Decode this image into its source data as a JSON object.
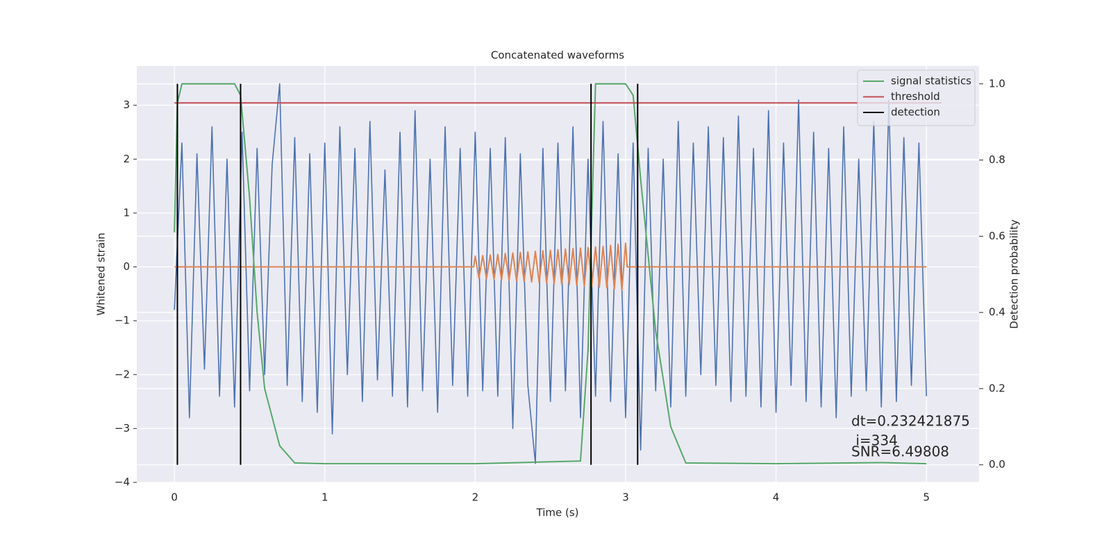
{
  "chart_data": {
    "type": "line",
    "title": "Concatenated waveforms",
    "xlabel": "Time (s)",
    "ylabel": "Whitened strain",
    "y2label": "Detection probability",
    "xlim": [
      -0.25,
      5.35
    ],
    "ylim": [
      -4.0,
      3.73
    ],
    "y2lim": [
      -0.046,
      1.047
    ],
    "xticks": [
      0,
      1,
      2,
      3,
      4,
      5
    ],
    "yticks": [
      {
        "value": -4,
        "label": "−4"
      },
      {
        "value": -3,
        "label": "−3"
      },
      {
        "value": -2,
        "label": "−2"
      },
      {
        "value": -1,
        "label": "−1"
      },
      0,
      1,
      2,
      3
    ],
    "y2ticks": [
      {
        "value": 0,
        "label": "0.0"
      },
      {
        "value": 0.2,
        "label": "0.2"
      },
      {
        "value": 0.4,
        "label": "0.4"
      },
      {
        "value": 0.6,
        "label": "0.6"
      },
      {
        "value": 0.8,
        "label": "0.8"
      },
      {
        "value": 1,
        "label": "1.0"
      }
    ],
    "grid": true,
    "legend": "upper right",
    "series": [
      {
        "color": "#4c72b0",
        "x": [
          0,
          0.05,
          0.1,
          0.15,
          0.2,
          0.25,
          0.3,
          0.35,
          0.4,
          0.45,
          0.5,
          0.55,
          0.6,
          0.65,
          0.7,
          0.75,
          0.8,
          0.85,
          0.9,
          0.95,
          1,
          1.05,
          1.1,
          1.15,
          1.2,
          1.25,
          1.3,
          1.35,
          1.4,
          1.45,
          1.5,
          1.55,
          1.6,
          1.65,
          1.7,
          1.75,
          1.8,
          1.85,
          1.9,
          1.95,
          2,
          2.05,
          2.1,
          2.15,
          2.2,
          2.25,
          2.3,
          2.35,
          2.4,
          2.45,
          2.5,
          2.55,
          2.6,
          2.65,
          2.7,
          2.75,
          2.8,
          2.85,
          2.9,
          2.95,
          3,
          3.05,
          3.1,
          3.15,
          3.2,
          3.25,
          3.3,
          3.35,
          3.4,
          3.45,
          3.5,
          3.55,
          3.6,
          3.65,
          3.7,
          3.75,
          3.8,
          3.85,
          3.9,
          3.95,
          4,
          4.05,
          4.1,
          4.15,
          4.2,
          4.25,
          4.3,
          4.35,
          4.4,
          4.45,
          4.5,
          4.55,
          4.6,
          4.65,
          4.7,
          4.75,
          4.8,
          4.85,
          4.9,
          4.95,
          5
        ],
        "values": [
          -0.8,
          2.3,
          -2.8,
          2.1,
          -1.9,
          2.6,
          -2.4,
          2.0,
          -2.6,
          2.5,
          -2.3,
          2.2,
          -2.0,
          1.9,
          3.4,
          -2.2,
          2.4,
          -2.5,
          2.1,
          -2.7,
          2.3,
          -3.1,
          2.6,
          -2.0,
          2.2,
          -2.5,
          2.7,
          -2.1,
          1.8,
          -2.4,
          2.5,
          -2.6,
          2.9,
          -2.3,
          2.0,
          -2.7,
          2.6,
          -2.2,
          2.2,
          -2.4,
          2.5,
          -2.3,
          2.2,
          -2.4,
          2.4,
          -3.0,
          2.1,
          -2.2,
          -3.65,
          2.2,
          -2.5,
          2.3,
          -2.3,
          2.6,
          -2.8,
          2.0,
          -2.4,
          2.7,
          -2.5,
          2.1,
          -2.8,
          2.3,
          -3.4,
          2.2,
          -2.3,
          2.0,
          -2.6,
          2.7,
          -2.4,
          2.3,
          -2.0,
          2.6,
          -2.2,
          2.4,
          -2.5,
          2.8,
          -2.4,
          2.2,
          -2.6,
          2.9,
          -2.7,
          2.3,
          -2.2,
          3.1,
          -2.5,
          2.5,
          -2.6,
          2.2,
          -2.8,
          2.6,
          -2.4,
          2.0,
          -2.3,
          2.7,
          -2.6,
          3.1,
          -2.5,
          2.4,
          -2.2,
          2.3,
          -2.4
        ]
      },
      {
        "color": "#dd8452",
        "x": [
          0,
          1.99,
          2,
          2.025,
          2.05,
          2.075,
          2.1,
          2.125,
          2.15,
          2.175,
          2.2,
          2.225,
          2.25,
          2.275,
          2.3,
          2.325,
          2.35,
          2.375,
          2.4,
          2.425,
          2.45,
          2.475,
          2.5,
          2.525,
          2.55,
          2.575,
          2.6,
          2.625,
          2.65,
          2.675,
          2.7,
          2.725,
          2.75,
          2.775,
          2.8,
          2.825,
          2.85,
          2.875,
          2.9,
          2.925,
          2.95,
          2.975,
          3,
          3.01,
          5
        ],
        "values": [
          0,
          0,
          0.2,
          -0.21,
          0.21,
          -0.22,
          0.22,
          -0.23,
          0.23,
          -0.24,
          0.25,
          -0.25,
          0.26,
          -0.26,
          0.27,
          -0.27,
          0.28,
          -0.28,
          0.29,
          -0.29,
          0.3,
          -0.3,
          0.31,
          -0.31,
          0.32,
          -0.32,
          0.33,
          -0.33,
          0.34,
          -0.34,
          0.35,
          -0.36,
          0.36,
          -0.37,
          0.37,
          -0.38,
          0.38,
          -0.39,
          0.4,
          -0.41,
          0.42,
          -0.43,
          0.44,
          0,
          0
        ]
      },
      {
        "name": "signal statistics",
        "color": "#55a868",
        "axis": "y2",
        "x": [
          0,
          0.02,
          0.05,
          0.1,
          0.4,
          0.44,
          0.5,
          0.55,
          0.6,
          0.7,
          0.8,
          1,
          2,
          2.7,
          2.75,
          2.8,
          3,
          3.05,
          3.1,
          3.2,
          3.3,
          3.4,
          4,
          4.7,
          5
        ],
        "values": [
          0.61,
          0.95,
          1.0,
          1.0,
          1.0,
          0.97,
          0.7,
          0.4,
          0.2,
          0.05,
          0.005,
          0.003,
          0.003,
          0.01,
          0.3,
          1.0,
          1.0,
          0.97,
          0.75,
          0.35,
          0.1,
          0.005,
          0.003,
          0.006,
          0.003
        ]
      },
      {
        "name": "threshold",
        "color": "#c44e52",
        "axis": "y2",
        "x": [
          0,
          5.1
        ],
        "values": [
          0.95,
          0.95
        ]
      },
      {
        "name": "detection",
        "color": "#000000",
        "axis": "y2",
        "style": "vline",
        "x": [
          0.02,
          0.44,
          2.77,
          3.08
        ],
        "values": [
          1,
          1,
          1,
          1
        ]
      }
    ],
    "annotations": [
      "dt=0.232421875",
      " i=334",
      "SNR=6.49808"
    ]
  }
}
